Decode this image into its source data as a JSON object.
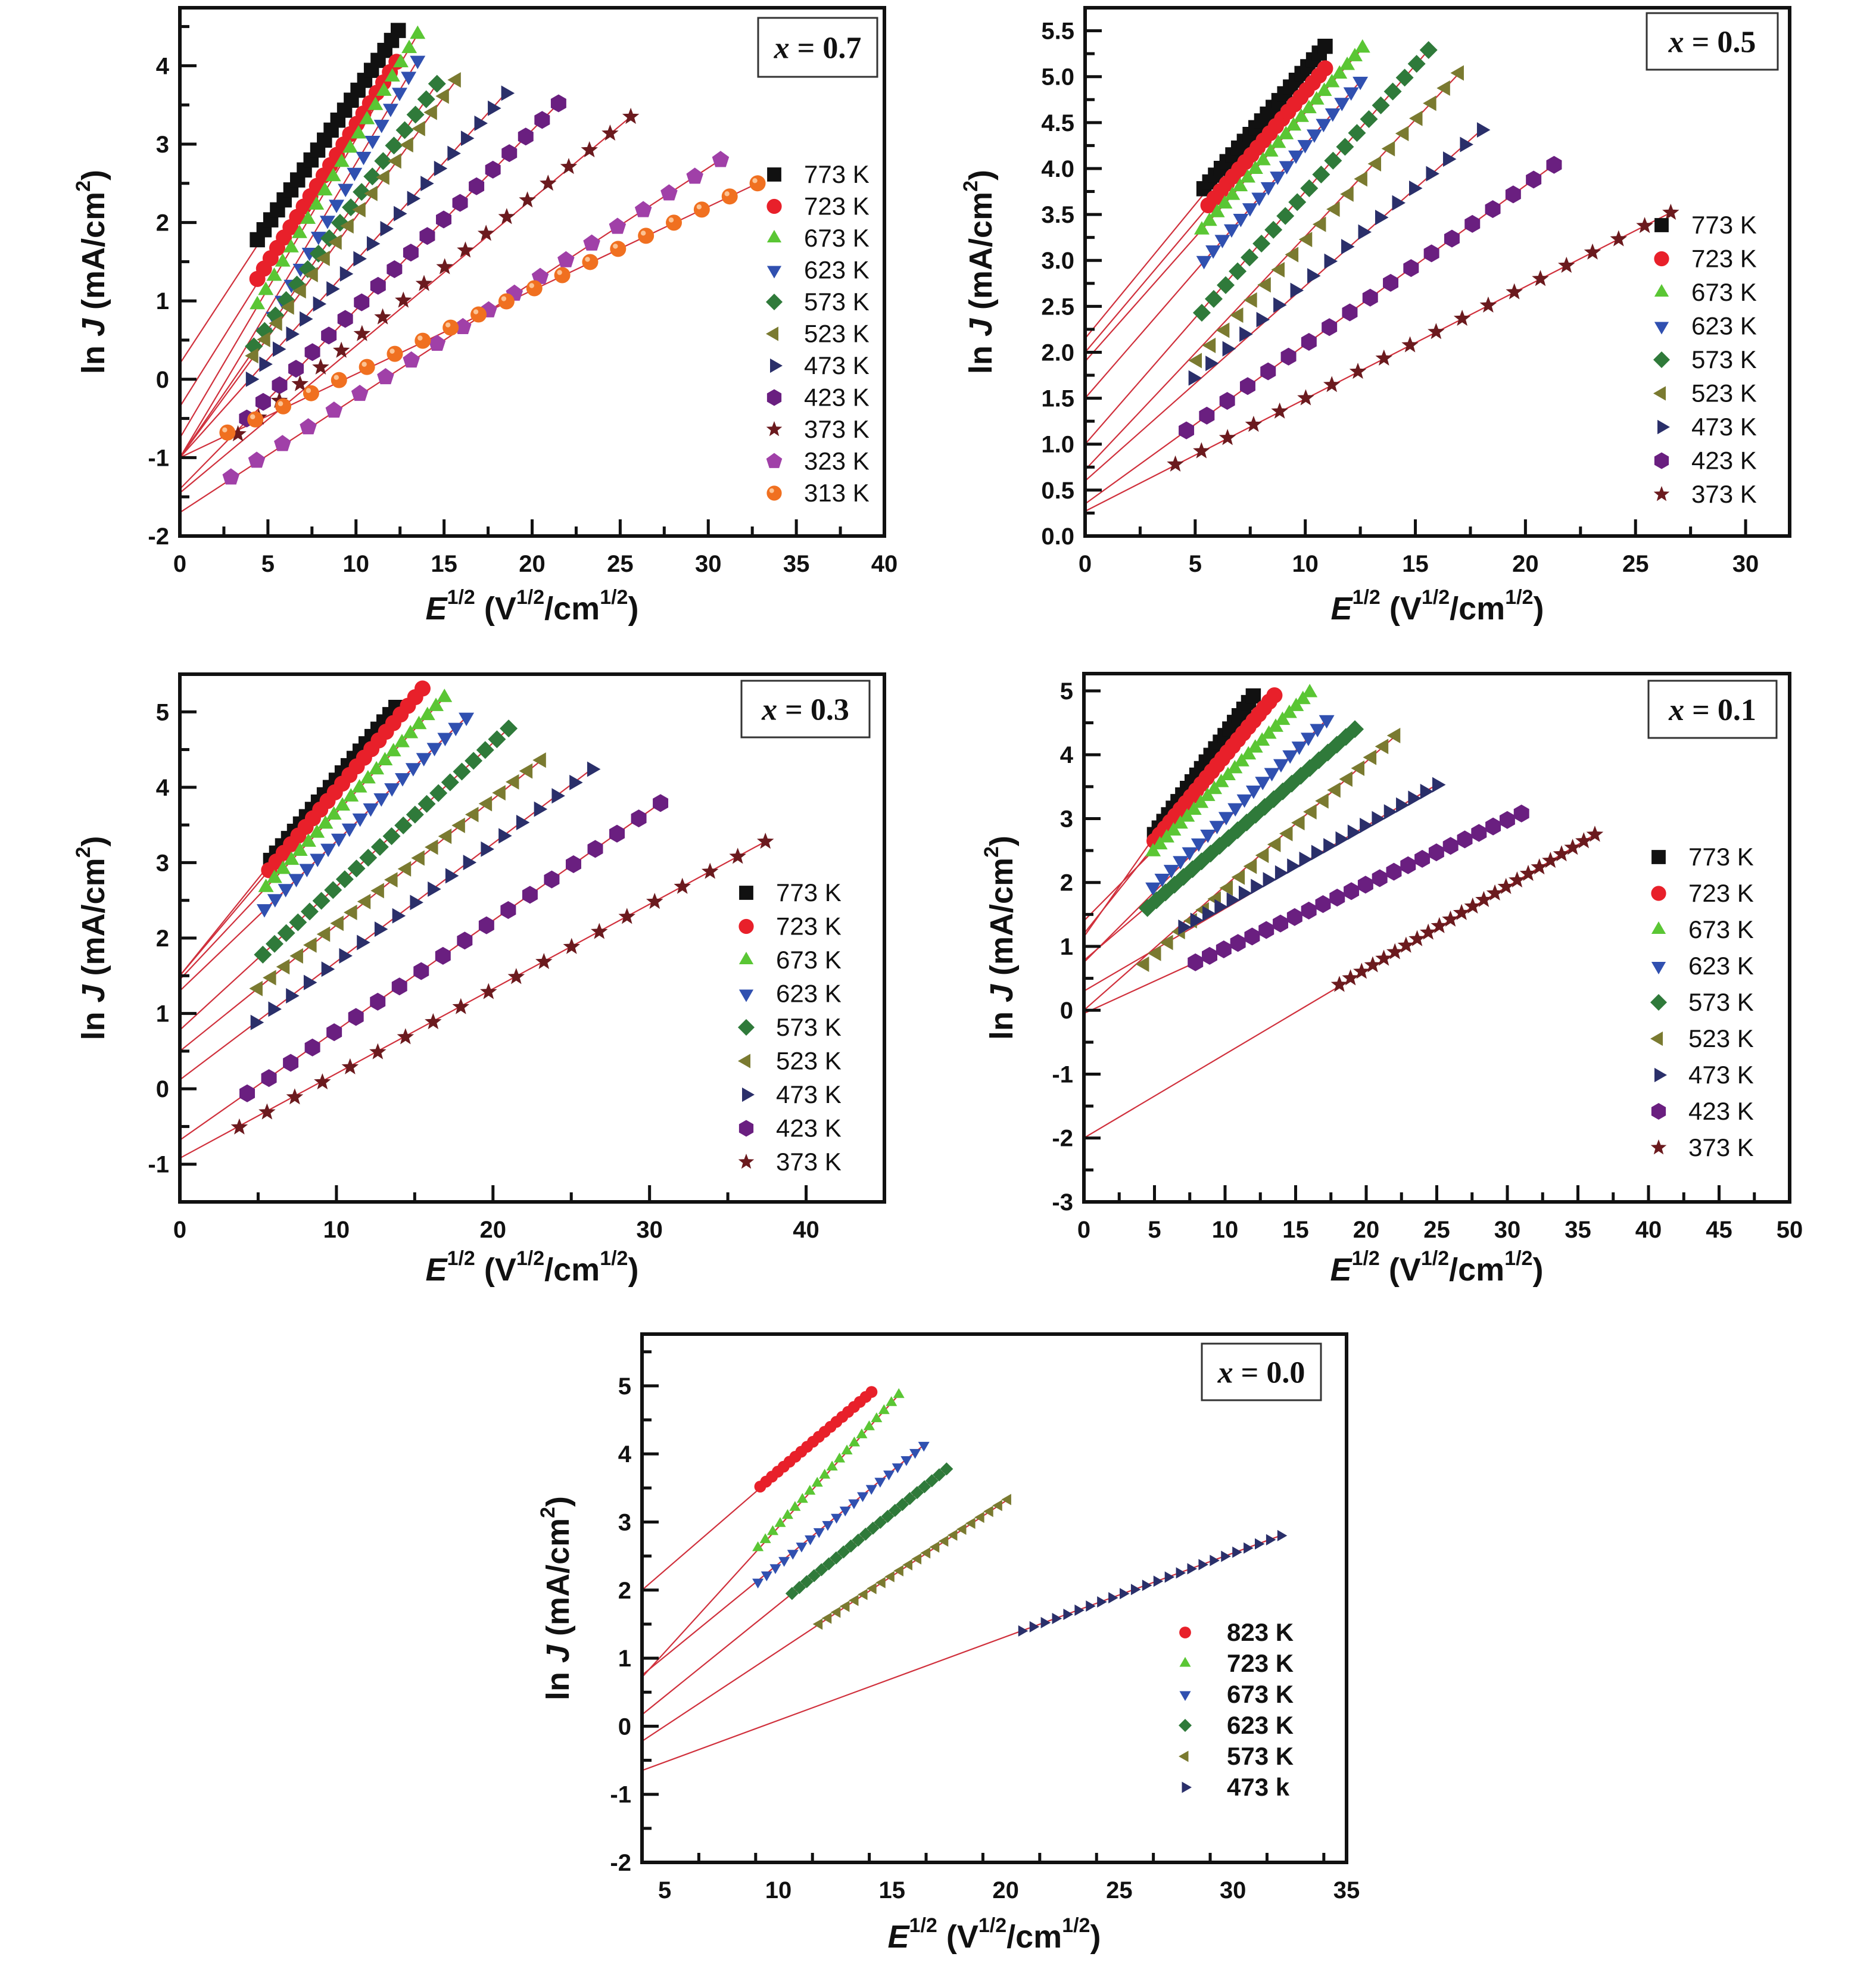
{
  "figure": {
    "description": "Field dependence of current density for five compositions"
  },
  "chart_data": [
    {
      "type": "scatter",
      "panel_label": {
        "var": "x",
        "eq": " = ",
        "value": "0.7"
      },
      "xlabel": {
        "main": "E",
        "sup": "1/2",
        "unit_open": " (V",
        "unit_sup1": "1/2",
        "unit_mid": "/cm",
        "unit_sup2": "1/2",
        "unit_close": ")"
      },
      "ylabel": {
        "pre": "ln ",
        "var": "J",
        "post": "  (mA/cm",
        "sup": "2",
        "close": ")"
      },
      "xlim": [
        0,
        40
      ],
      "ylim": [
        -2,
        4.74
      ],
      "xticks": [
        0,
        5,
        10,
        15,
        20,
        25,
        30,
        35,
        40
      ],
      "yticks": [
        -2,
        -1,
        0,
        1,
        2,
        3,
        4
      ],
      "legend_position": "right",
      "legend_bold": false,
      "series": [
        {
          "name": "773 K",
          "marker": "square",
          "color": "#111111",
          "intercept": 0.2,
          "x_start": 4.4,
          "x_end": 12.4,
          "y_start": 1.78,
          "y_end": 4.45,
          "n": 22
        },
        {
          "name": "723 K",
          "marker": "circle",
          "color": "#e8202a",
          "intercept": -0.35,
          "x_start": 4.4,
          "x_end": 12.3,
          "y_start": 1.28,
          "y_end": 4.05,
          "n": 22
        },
        {
          "name": "673 K",
          "marker": "triangle-up",
          "color": "#5ac634",
          "intercept": -0.75,
          "x_start": 4.4,
          "x_end": 13.5,
          "y_start": 0.95,
          "y_end": 4.4,
          "n": 20
        },
        {
          "name": "623 K",
          "marker": "triangle-down",
          "color": "#3050b0",
          "intercept": -1.0,
          "x_start": 4.8,
          "x_end": 13.5,
          "y_start": 0.6,
          "y_end": 4.07,
          "n": 18
        },
        {
          "name": "573 K",
          "marker": "diamond",
          "color": "#2f7a3a",
          "intercept": -1.0,
          "x_start": 4.2,
          "x_end": 14.6,
          "y_start": 0.42,
          "y_end": 3.77,
          "n": 18
        },
        {
          "name": "523 K",
          "marker": "triangle-left",
          "color": "#7a7a30",
          "intercept": -1.0,
          "x_start": 4.2,
          "x_end": 15.7,
          "y_start": 0.3,
          "y_end": 3.82,
          "n": 18
        },
        {
          "name": "473 K",
          "marker": "triangle-right",
          "color": "#2a2f6a",
          "intercept": -1.0,
          "x_start": 4.0,
          "x_end": 18.5,
          "y_start": 0.0,
          "y_end": 3.65,
          "n": 20
        },
        {
          "name": "423 K",
          "marker": "hexagon",
          "color": "#6a1f80",
          "intercept": -1.4,
          "x_start": 3.8,
          "x_end": 21.5,
          "y_start": -0.5,
          "y_end": 3.52,
          "n": 20
        },
        {
          "name": "373 K",
          "marker": "star",
          "color": "#6b1a1e",
          "intercept": -1.45,
          "x_start": 3.3,
          "x_end": 25.6,
          "y_start": -0.7,
          "y_end": 3.35,
          "n": 20
        },
        {
          "name": "323 K",
          "marker": "pentagon",
          "color": "#a040a8",
          "intercept": -1.7,
          "x_start": 2.9,
          "x_end": 30.7,
          "y_start": -1.25,
          "y_end": 2.8,
          "n": 20
        },
        {
          "name": "313 K",
          "marker": "sphere",
          "color": "#f07020",
          "intercept": -1.0,
          "x_start": 2.7,
          "x_end": 32.8,
          "y_start": -0.68,
          "y_end": 2.5,
          "n": 20
        }
      ]
    },
    {
      "type": "scatter",
      "panel_label": {
        "var": "x",
        "eq": " = ",
        "value": "0.5"
      },
      "xlabel": {
        "main": "E",
        "sup": "1/2",
        "unit_open": " (V",
        "unit_sup1": "1/2",
        "unit_mid": "/cm",
        "unit_sup2": "1/2",
        "unit_close": ")"
      },
      "ylabel": {
        "pre": "ln ",
        "var": "J",
        "post": "  (mA/cm",
        "sup": "2",
        "close": ")"
      },
      "xlim": [
        0,
        32
      ],
      "ylim": [
        0,
        5.75
      ],
      "xticks": [
        0,
        5,
        10,
        15,
        20,
        25,
        30
      ],
      "yticks": [
        0.0,
        0.5,
        1.0,
        1.5,
        2.0,
        2.5,
        3.0,
        3.5,
        4.0,
        4.5,
        5.0,
        5.5
      ],
      "ytick_decimals": 1,
      "legend_position": "right",
      "legend_bold": false,
      "series": [
        {
          "name": "773 K",
          "marker": "square",
          "color": "#111111",
          "intercept": 2.15,
          "x_start": 5.4,
          "x_end": 10.9,
          "y_start": 3.78,
          "y_end": 5.33,
          "n": 22
        },
        {
          "name": "723 K",
          "marker": "circle",
          "color": "#e8202a",
          "intercept": 2.0,
          "x_start": 5.6,
          "x_end": 10.9,
          "y_start": 3.6,
          "y_end": 5.09,
          "n": 20
        },
        {
          "name": "673 K",
          "marker": "triangle-up",
          "color": "#5ac634",
          "intercept": 1.9,
          "x_start": 5.3,
          "x_end": 12.6,
          "y_start": 3.33,
          "y_end": 5.31,
          "n": 22
        },
        {
          "name": "623 K",
          "marker": "triangle-down",
          "color": "#3050b0",
          "intercept": 1.5,
          "x_start": 5.4,
          "x_end": 12.5,
          "y_start": 3.0,
          "y_end": 4.95,
          "n": 18
        },
        {
          "name": "573 K",
          "marker": "diamond",
          "color": "#2f7a3a",
          "intercept": 1.0,
          "x_start": 5.3,
          "x_end": 15.6,
          "y_start": 2.43,
          "y_end": 5.29,
          "n": 20
        },
        {
          "name": "523 K",
          "marker": "triangle-left",
          "color": "#7a7a30",
          "intercept": 0.72,
          "x_start": 5.1,
          "x_end": 17.0,
          "y_start": 1.91,
          "y_end": 5.04,
          "n": 20
        },
        {
          "name": "473 K",
          "marker": "triangle-right",
          "color": "#2a2f6a",
          "intercept": 0.6,
          "x_start": 4.9,
          "x_end": 18.0,
          "y_start": 1.72,
          "y_end": 4.42,
          "n": 18
        },
        {
          "name": "423 K",
          "marker": "hexagon",
          "color": "#6a1f80",
          "intercept": 0.35,
          "x_start": 4.6,
          "x_end": 21.3,
          "y_start": 1.15,
          "y_end": 4.04,
          "n": 19
        },
        {
          "name": "373 K",
          "marker": "star",
          "color": "#6b1a1e",
          "intercept": 0.27,
          "x_start": 4.1,
          "x_end": 26.6,
          "y_start": 0.78,
          "y_end": 3.52,
          "n": 20
        }
      ]
    },
    {
      "type": "scatter",
      "panel_label": {
        "var": "x",
        "eq": " = ",
        "value": "0.3"
      },
      "xlabel": {
        "main": "E",
        "sup": "1/2",
        "unit_open": " (V",
        "unit_sup1": "1/2",
        "unit_mid": "/cm",
        "unit_sup2": "1/2",
        "unit_close": ")"
      },
      "ylabel": {
        "pre": "ln ",
        "var": "J",
        "post": "  (mA/cm",
        "sup": "2",
        "close": ")"
      },
      "xlim": [
        0,
        45
      ],
      "ylim": [
        -1.5,
        5.5
      ],
      "xticks": [
        0,
        10,
        20,
        30,
        40
      ],
      "yticks": [
        -1,
        0,
        1,
        2,
        3,
        4,
        5
      ],
      "legend_position": "right",
      "legend_bold": false,
      "series": [
        {
          "name": "773 K",
          "marker": "square",
          "color": "#111111",
          "intercept": 1.5,
          "x_start": 5.8,
          "x_end": 13.8,
          "y_start": 3.03,
          "y_end": 5.06,
          "n": 22
        },
        {
          "name": "723 K",
          "marker": "circle",
          "color": "#e8202a",
          "intercept": 1.5,
          "x_start": 5.7,
          "x_end": 15.5,
          "y_start": 2.9,
          "y_end": 5.31,
          "n": 22
        },
        {
          "name": "673 K",
          "marker": "triangle-up",
          "color": "#5ac634",
          "intercept": 1.45,
          "x_start": 5.5,
          "x_end": 16.9,
          "y_start": 2.67,
          "y_end": 5.19,
          "n": 22
        },
        {
          "name": "623 K",
          "marker": "triangle-down",
          "color": "#3050b0",
          "intercept": 1.3,
          "x_start": 5.4,
          "x_end": 18.3,
          "y_start": 2.39,
          "y_end": 4.93,
          "n": 20
        },
        {
          "name": "573 K",
          "marker": "diamond",
          "color": "#2f7a3a",
          "intercept": 0.78,
          "x_start": 5.3,
          "x_end": 21.0,
          "y_start": 1.78,
          "y_end": 4.78,
          "n": 22
        },
        {
          "name": "523 K",
          "marker": "triangle-left",
          "color": "#7a7a30",
          "intercept": 0.5,
          "x_start": 5.0,
          "x_end": 23.1,
          "y_start": 1.33,
          "y_end": 4.36,
          "n": 22
        },
        {
          "name": "473 K",
          "marker": "triangle-right",
          "color": "#2a2f6a",
          "intercept": 0.12,
          "x_start": 4.8,
          "x_end": 26.3,
          "y_start": 0.88,
          "y_end": 4.24,
          "n": 20
        },
        {
          "name": "423 K",
          "marker": "hexagon",
          "color": "#6a1f80",
          "intercept": -0.68,
          "x_start": 4.3,
          "x_end": 30.7,
          "y_start": -0.06,
          "y_end": 3.79,
          "n": 20
        },
        {
          "name": "373 K",
          "marker": "star",
          "color": "#6b1a1e",
          "intercept": -0.92,
          "x_start": 3.8,
          "x_end": 37.4,
          "y_start": -0.51,
          "y_end": 3.28,
          "n": 20
        }
      ]
    },
    {
      "type": "scatter",
      "panel_label": {
        "var": "x",
        "eq": " = ",
        "value": "0.1"
      },
      "xlabel": {
        "main": "E",
        "sup": "1/2",
        "unit_open": " (V",
        "unit_sup1": "1/2",
        "unit_mid": "/cm",
        "unit_sup2": "1/2",
        "unit_close": ")"
      },
      "ylabel": {
        "pre": "ln ",
        "var": "J",
        "post": "  (mA/cm",
        "sup": "2",
        "close": ")"
      },
      "xlim": [
        0,
        50
      ],
      "ylim": [
        -3,
        5.27
      ],
      "xticks": [
        0,
        5,
        10,
        15,
        20,
        25,
        30,
        35,
        40,
        45,
        50
      ],
      "yticks": [
        -3,
        -2,
        -1,
        0,
        1,
        2,
        3,
        4,
        5
      ],
      "legend_position": "right",
      "legend_bold": false,
      "series": [
        {
          "name": "773 K",
          "marker": "square",
          "color": "#111111",
          "intercept": 1.15,
          "x_start": 5.0,
          "x_end": 12.0,
          "y_start": 2.75,
          "y_end": 4.92,
          "n": 22
        },
        {
          "name": "723 K",
          "marker": "circle",
          "color": "#e8202a",
          "intercept": 1.2,
          "x_start": 5.0,
          "x_end": 13.5,
          "y_start": 2.65,
          "y_end": 4.93,
          "n": 24
        },
        {
          "name": "673 K",
          "marker": "triangle-up",
          "color": "#5ac634",
          "intercept": 1.4,
          "x_start": 4.9,
          "x_end": 16.0,
          "y_start": 2.48,
          "y_end": 4.97,
          "n": 24
        },
        {
          "name": "623 K",
          "marker": "triangle-down",
          "color": "#3050b0",
          "intercept": 0.75,
          "x_start": 4.9,
          "x_end": 17.2,
          "y_start": 1.93,
          "y_end": 4.55,
          "n": 20
        },
        {
          "name": "573 K",
          "marker": "diamond",
          "color": "#2f7a3a",
          "intercept": 0.78,
          "x_start": 4.5,
          "x_end": 19.2,
          "y_start": 1.6,
          "y_end": 4.4,
          "n": 24
        },
        {
          "name": "523 K",
          "marker": "triangle-left",
          "color": "#7a7a30",
          "intercept": 0.0,
          "x_start": 4.3,
          "x_end": 22.1,
          "y_start": 0.72,
          "y_end": 4.3,
          "n": 22
        },
        {
          "name": "473 K",
          "marker": "triangle-right",
          "color": "#2a2f6a",
          "intercept": 0.3,
          "x_start": 7.0,
          "x_end": 25.0,
          "y_start": 1.3,
          "y_end": 3.53,
          "n": 22
        },
        {
          "name": "423 K",
          "marker": "hexagon",
          "color": "#6a1f80",
          "intercept": -0.05,
          "x_start": 7.9,
          "x_end": 31.0,
          "y_start": 0.75,
          "y_end": 3.08,
          "n": 24
        },
        {
          "name": "373 K",
          "marker": "star",
          "color": "#6b1a1e",
          "intercept": -2.0,
          "x_start": 18.1,
          "x_end": 36.2,
          "y_start": 0.4,
          "y_end": 2.75,
          "n": 24
        }
      ]
    },
    {
      "type": "scatter",
      "panel_label": {
        "var": "x",
        "eq": " = ",
        "value": "0.0"
      },
      "xlabel": {
        "main": "E",
        "sup": "1/2",
        "unit_open": " (V",
        "unit_sup1": "1/2",
        "unit_mid": "/cm",
        "unit_sup2": "1/2",
        "unit_close": ")"
      },
      "ylabel": {
        "pre": "ln ",
        "var": "J",
        "post": "  (mA/cm",
        "sup": "2",
        "close": ")"
      },
      "xlim": [
        4,
        35
      ],
      "ylim": [
        -2,
        5.76
      ],
      "xticks": [
        5,
        10,
        15,
        20,
        25,
        30,
        35
      ],
      "yticks": [
        -2,
        -1,
        0,
        1,
        2,
        3,
        4,
        5
      ],
      "legend_position": "lower-right",
      "legend_bold": true,
      "series": [
        {
          "name": "823 K",
          "marker": "circle",
          "color": "#e8202a",
          "intercept": 2.0,
          "x_start": 9.2,
          "x_end": 14.1,
          "y_start": 3.52,
          "y_end": 4.91,
          "n": 20
        },
        {
          "name": "723 K",
          "marker": "triangle-up",
          "color": "#5ac634",
          "intercept": 0.72,
          "x_start": 9.1,
          "x_end": 15.3,
          "y_start": 2.62,
          "y_end": 4.87,
          "n": 20
        },
        {
          "name": "673 K",
          "marker": "triangle-down",
          "color": "#3050b0",
          "intercept": 0.75,
          "x_start": 9.1,
          "x_end": 16.4,
          "y_start": 2.12,
          "y_end": 4.13,
          "n": 20
        },
        {
          "name": "623 K",
          "marker": "diamond",
          "color": "#2f7a3a",
          "intercept": 0.17,
          "x_start": 10.6,
          "x_end": 17.4,
          "y_start": 1.95,
          "y_end": 3.78,
          "n": 22
        },
        {
          "name": "573 K",
          "marker": "triangle-left",
          "color": "#7a7a30",
          "intercept": -0.22,
          "x_start": 11.8,
          "x_end": 20.1,
          "y_start": 1.5,
          "y_end": 3.33,
          "n": 22
        },
        {
          "name": "473 k",
          "marker": "triangle-right",
          "color": "#2a2f6a",
          "intercept": -0.65,
          "x_start": 20.7,
          "x_end": 32.1,
          "y_start": 1.4,
          "y_end": 2.8,
          "n": 24
        }
      ]
    }
  ],
  "style": {
    "fit_line_color": "#d0303c",
    "axis_color": "#111111"
  }
}
